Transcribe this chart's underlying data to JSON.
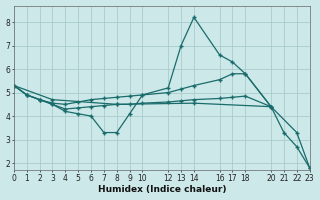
{
  "xlabel": "Humidex (Indice chaleur)",
  "background_color": "#cce8e8",
  "grid_color": "#aacccc",
  "line_color": "#1a6b6b",
  "xlim": [
    0,
    23
  ],
  "ylim": [
    1.7,
    8.7
  ],
  "xticks": [
    0,
    1,
    2,
    3,
    4,
    5,
    6,
    7,
    8,
    9,
    10,
    12,
    13,
    14,
    16,
    17,
    18,
    20,
    21,
    22,
    23
  ],
  "yticks": [
    2,
    3,
    4,
    5,
    6,
    7,
    8
  ],
  "lines": [
    {
      "x": [
        0,
        1,
        2,
        3,
        4,
        5,
        6,
        7,
        8,
        9,
        10,
        12,
        13,
        14,
        16,
        17,
        18,
        20,
        21,
        22,
        23
      ],
      "y": [
        5.3,
        4.9,
        4.7,
        4.5,
        4.2,
        4.1,
        4.0,
        3.3,
        3.3,
        4.1,
        4.9,
        5.2,
        7.0,
        8.2,
        6.6,
        6.3,
        5.8,
        4.4,
        3.3,
        2.7,
        1.8
      ]
    },
    {
      "x": [
        0,
        1,
        2,
        3,
        4,
        5,
        6,
        7,
        8,
        9,
        10,
        12,
        13,
        14,
        16,
        17,
        18,
        20
      ],
      "y": [
        5.3,
        4.9,
        4.7,
        4.55,
        4.5,
        4.6,
        4.7,
        4.75,
        4.8,
        4.85,
        4.9,
        5.0,
        5.15,
        5.3,
        5.55,
        5.8,
        5.8,
        4.4
      ]
    },
    {
      "x": [
        0,
        1,
        2,
        3,
        4,
        5,
        6,
        7,
        8,
        9,
        10,
        12,
        13,
        14,
        16,
        17,
        18,
        20
      ],
      "y": [
        5.3,
        4.9,
        4.7,
        4.5,
        4.3,
        4.35,
        4.4,
        4.45,
        4.5,
        4.5,
        4.55,
        4.6,
        4.65,
        4.7,
        4.75,
        4.8,
        4.85,
        4.4
      ]
    },
    {
      "x": [
        0,
        3,
        8,
        14,
        20,
        22,
        23
      ],
      "y": [
        5.3,
        4.7,
        4.5,
        4.55,
        4.4,
        3.3,
        1.8
      ]
    }
  ]
}
